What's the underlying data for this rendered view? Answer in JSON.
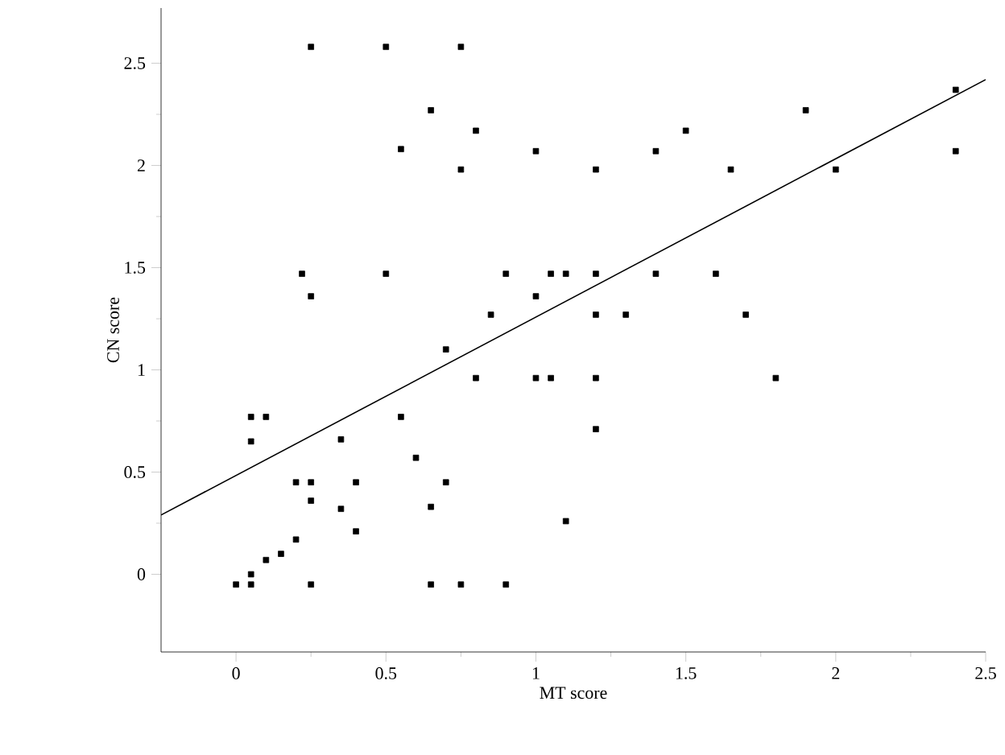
{
  "chart_data": {
    "type": "scatter",
    "xlabel": "MT score",
    "ylabel": "CN score",
    "xlim": [
      -0.25,
      2.5
    ],
    "ylim": [
      -0.38,
      2.77
    ],
    "xticks": [
      0,
      0.5,
      1,
      1.5,
      2,
      2.5
    ],
    "yticks": [
      0,
      0.5,
      1,
      1.5,
      2,
      2.5
    ],
    "grid": false,
    "marker": "square",
    "series": [
      {
        "type": "scatter",
        "color": "#000000",
        "x": [
          0,
          0.05,
          0.05,
          0.1,
          0.15,
          0.2,
          0.05,
          0.05,
          0.1,
          0.22,
          0.25,
          0.25,
          0.25,
          0.25,
          0.25,
          0.2,
          0.35,
          0.35,
          0.4,
          0.4,
          0.5,
          0.5,
          0.55,
          0.55,
          0.6,
          0.65,
          0.65,
          0.65,
          0.7,
          0.7,
          0.75,
          0.75,
          0.75,
          0.8,
          0.8,
          0.85,
          0.9,
          0.9,
          1.0,
          1.0,
          1.0,
          1.05,
          1.05,
          1.1,
          1.1,
          1.2,
          1.2,
          1.2,
          1.2,
          1.2,
          1.3,
          1.4,
          1.4,
          1.5,
          1.6,
          1.65,
          1.7,
          1.8,
          1.9,
          2.0,
          2.4,
          2.4
        ],
        "values": [
          -0.05,
          -0.05,
          0.0,
          0.07,
          0.1,
          0.17,
          0.77,
          0.65,
          0.77,
          1.47,
          2.58,
          1.36,
          0.45,
          0.36,
          -0.05,
          0.45,
          0.66,
          0.32,
          0.45,
          0.21,
          2.58,
          1.47,
          2.08,
          0.77,
          0.57,
          2.27,
          0.33,
          -0.05,
          1.1,
          0.45,
          2.58,
          1.98,
          -0.05,
          2.17,
          0.96,
          1.27,
          1.47,
          -0.05,
          2.07,
          1.36,
          0.96,
          1.47,
          0.96,
          1.47,
          0.26,
          1.98,
          1.47,
          1.27,
          0.96,
          0.71,
          1.27,
          2.07,
          1.47,
          2.17,
          1.47,
          1.98,
          1.27,
          0.96,
          2.27,
          1.98,
          2.37,
          2.07
        ]
      },
      {
        "type": "line",
        "color": "#000000",
        "marker": "none",
        "line_style": "solid",
        "x": [
          -0.25,
          2.5
        ],
        "values": [
          0.29,
          2.42
        ]
      }
    ]
  }
}
